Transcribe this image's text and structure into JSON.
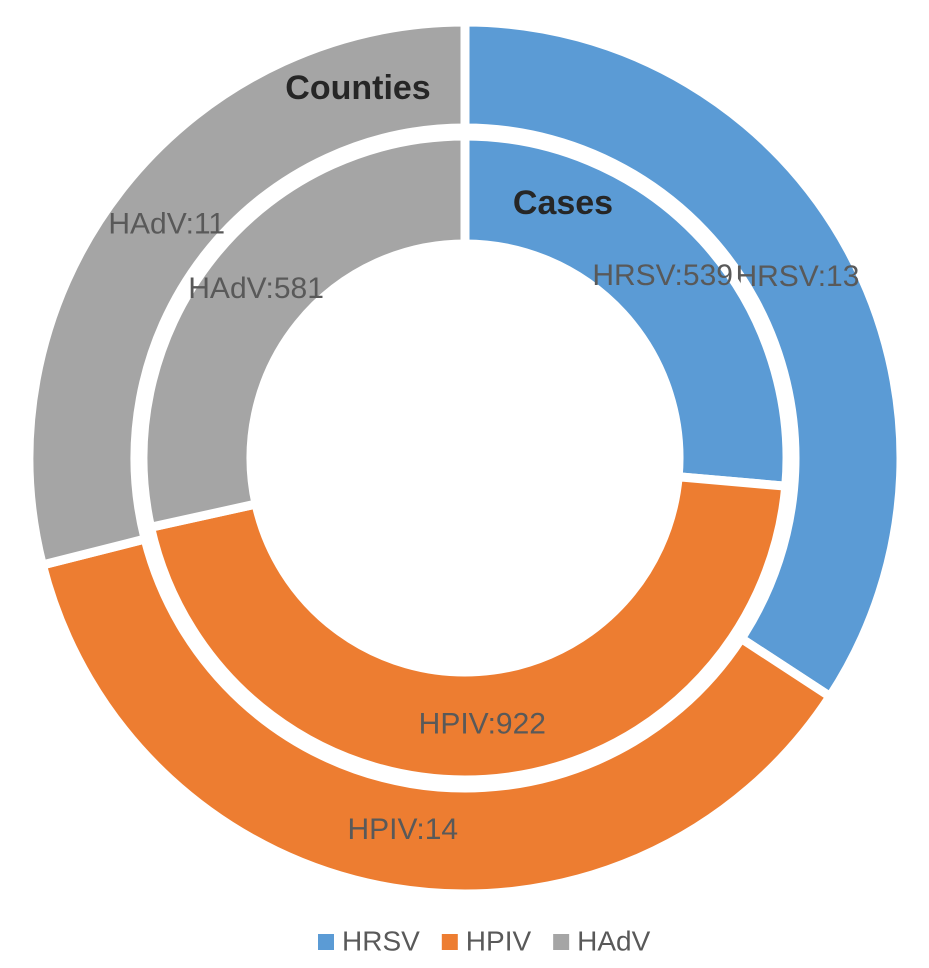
{
  "chart_data": {
    "type": "pie",
    "categories": [
      "HRSV",
      "HPIV",
      "HAdV"
    ],
    "colors": [
      "#5b9bd5",
      "#ed7d31",
      "#a5a5a5"
    ],
    "series": [
      {
        "name": "Counties",
        "values": [
          13,
          14,
          11
        ],
        "value_labels": [
          "HRSV:13",
          "HPIV:14",
          "HAdV:11"
        ]
      },
      {
        "name": "Cases",
        "values": [
          539,
          922,
          581
        ],
        "value_labels": [
          "HRSV:539",
          "HPIV:922",
          "HAdV:581"
        ]
      }
    ],
    "legend": "bottom"
  }
}
